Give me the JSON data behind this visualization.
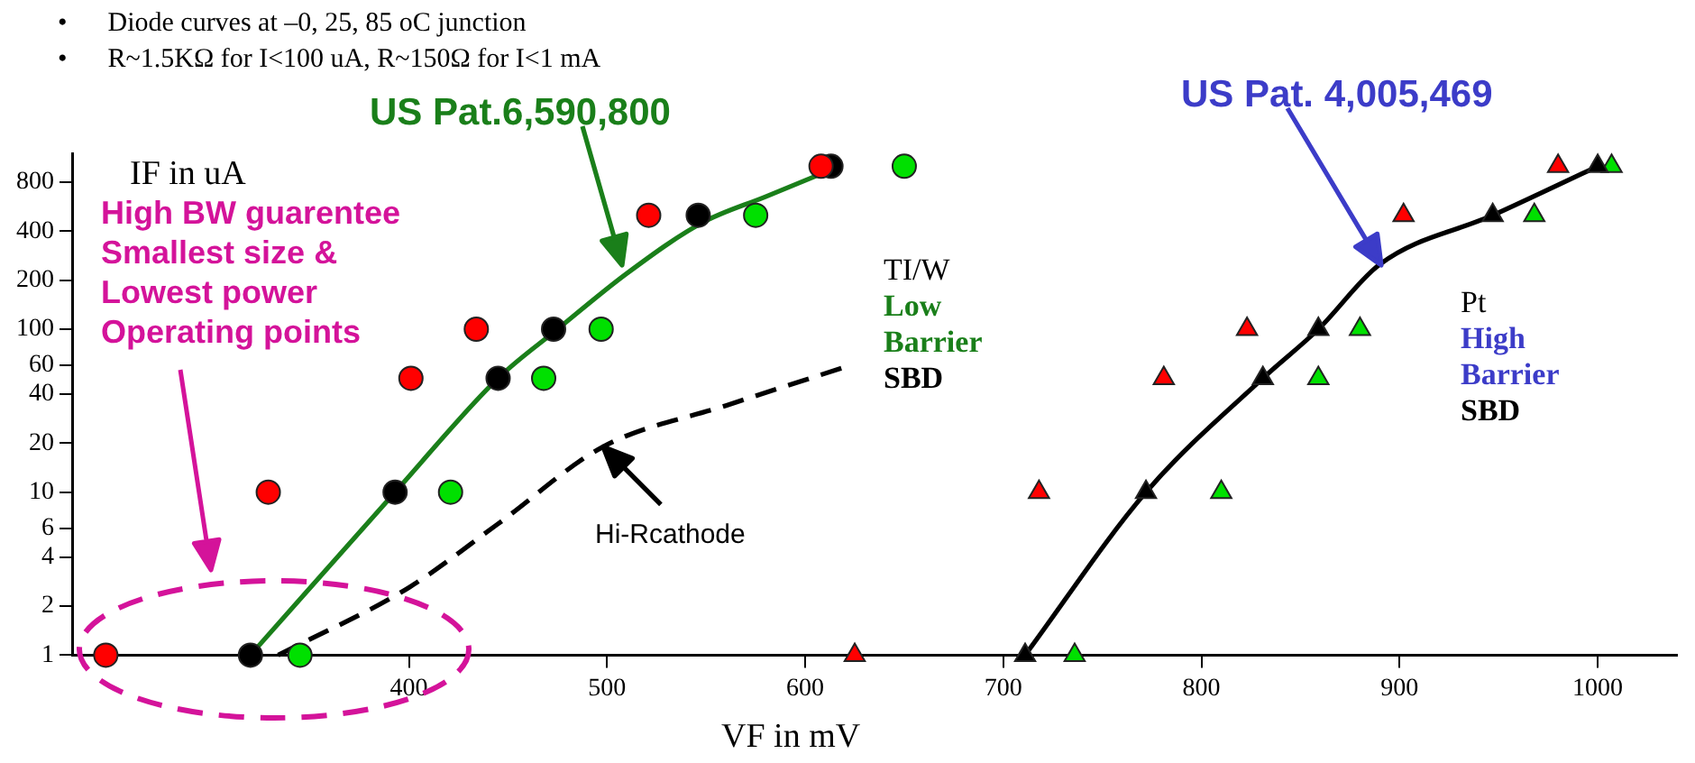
{
  "chart_data": {
    "type": "scatter",
    "xlabel": "VF in mV",
    "ylabel": "IF in uA",
    "log": "y",
    "grid": false,
    "legend": false,
    "xlim": [
      230,
      1040
    ],
    "ylim": [
      1,
      1200
    ],
    "xticks": [
      400,
      500,
      600,
      700,
      800,
      900,
      1000
    ],
    "yticks": [
      1,
      2,
      4,
      6,
      10,
      20,
      40,
      60,
      100,
      200,
      400,
      800
    ],
    "annotations": [
      "•      Diode curves at –0, 25, 85 oC junction",
      "•      R~1.5KΩ for I<100 uA, R~150Ω for I<1 mA",
      "US Pat.6,590,800",
      "US Pat. 4,005,469",
      "TI/W",
      "Low",
      "Barrier",
      "SBD",
      "Pt",
      "High",
      "Barrier",
      "SBD",
      {
        "text": "Hi-Rcathode",
        "x": 498,
        "y": 19
      },
      "High BW guarentee",
      "Smallest size &",
      "Lowest power",
      "Operating points"
    ],
    "series": [
      {
        "type": "scatter",
        "marker": "circle",
        "color": "#ff0000",
        "x": [
          247,
          329,
          401,
          434,
          521,
          608
        ],
        "values": [
          1,
          10,
          50,
          100,
          500,
          1000
        ]
      },
      {
        "type": "scatter",
        "marker": "circle",
        "color": "#000000",
        "x": [
          320,
          393,
          445,
          473,
          546,
          613
        ],
        "values": [
          1,
          10,
          50,
          100,
          500,
          1000
        ]
      },
      {
        "type": "scatter",
        "marker": "circle",
        "color": "#00e000",
        "x": [
          345,
          421,
          468,
          497,
          575,
          650
        ],
        "values": [
          1,
          10,
          50,
          100,
          500,
          1000
        ]
      },
      {
        "type": "scatter",
        "marker": "triangle",
        "color": "#ff0000",
        "x": [
          625,
          718,
          781,
          823,
          902,
          980
        ],
        "values": [
          1,
          10,
          50,
          100,
          500,
          1000
        ]
      },
      {
        "type": "scatter",
        "marker": "triangle",
        "color": "#000000",
        "x": [
          711,
          772,
          831,
          859,
          947,
          1000
        ],
        "values": [
          1,
          10,
          50,
          100,
          500,
          1000
        ]
      },
      {
        "type": "scatter",
        "marker": "triangle",
        "color": "#00e000",
        "x": [
          736,
          810,
          859,
          880,
          968,
          1007
        ],
        "values": [
          1,
          10,
          50,
          100,
          500,
          1000
        ]
      },
      {
        "type": "line",
        "marker": "none",
        "line_style": "solid",
        "color": "#1a7f1a",
        "x": [
          320,
          393,
          445,
          475,
          510,
          548,
          580,
          613
        ],
        "values": [
          1,
          10,
          50,
          100,
          220,
          450,
          650,
          950
        ]
      },
      {
        "type": "line",
        "marker": "none",
        "line_style": "dashed",
        "color": "#000000",
        "x": [
          334,
          400,
          445,
          498,
          560,
          619
        ],
        "values": [
          1,
          2.6,
          6.4,
          19,
          34,
          58
        ]
      },
      {
        "type": "line",
        "marker": "none",
        "line_style": "solid",
        "color": "#000000",
        "x": [
          711,
          772,
          831,
          859,
          890,
          947,
          1000
        ],
        "values": [
          1,
          10,
          50,
          100,
          250,
          500,
          1000
        ]
      }
    ]
  }
}
